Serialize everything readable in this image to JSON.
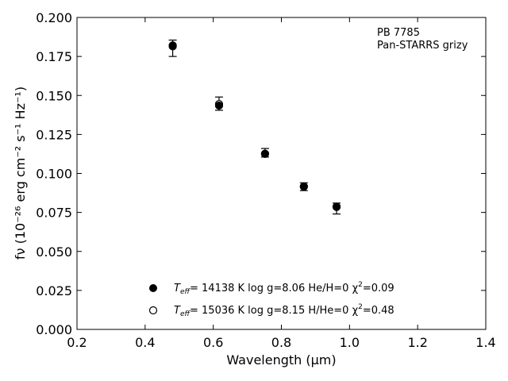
{
  "chart_data": {
    "type": "scatter",
    "title": "",
    "xlabel": "Wavelength (μm)",
    "ylabel": "fν (10⁻²⁶ erg cm⁻² s⁻¹ Hz⁻¹)",
    "xlim": [
      0.2,
      1.4
    ],
    "ylim": [
      0.0,
      0.2
    ],
    "xticks": [
      "0.2",
      "0.4",
      "0.6",
      "0.8",
      "1.0",
      "1.2",
      "1.4"
    ],
    "yticks": [
      "0.000",
      "0.025",
      "0.050",
      "0.075",
      "0.100",
      "0.125",
      "0.150",
      "0.175",
      "0.200"
    ],
    "annotation": [
      "PB 7785",
      "Pan-STARRS grizy"
    ],
    "observed": {
      "x": [
        0.481,
        0.617,
        0.752,
        0.866,
        0.962
      ],
      "y": [
        0.1805,
        0.1445,
        0.1125,
        0.0915,
        0.0775
      ],
      "yerr_low": [
        0.0055,
        0.004,
        0.002,
        0.0025,
        0.0035
      ],
      "yerr_high": [
        0.005,
        0.0045,
        0.0035,
        0.0025,
        0.0035
      ]
    },
    "series": [
      {
        "marker": "filled-circle",
        "label": "T_eff= 14138 K  log g=8.06  He/H=0  χ²=0.09",
        "x": [
          0.481,
          0.617,
          0.752,
          0.866,
          0.962
        ],
        "y": [
          0.1821,
          0.1435,
          0.1126,
          0.0917,
          0.0787
        ]
      },
      {
        "marker": "open-circle",
        "label": "T_eff= 15036 K  log g=8.15  H/He=0  χ²=0.48",
        "x": [
          0.481,
          0.617,
          0.752,
          0.866,
          0.962
        ],
        "y": [
          0.1815,
          0.1445,
          0.1126,
          0.0915,
          0.0785
        ]
      }
    ],
    "legend": {
      "placement": "lower-center",
      "entries": [
        {
          "teff_label": "T",
          "teff_sub": "eff",
          "text": "= 14138 K  log g=8.06  He/H=0  χ",
          "sup": "2",
          "tail": "=0.09"
        },
        {
          "teff_label": "T",
          "teff_sub": "eff",
          "text": "= 15036 K  log g=8.15  H/He=0  χ",
          "sup": "2",
          "tail": "=0.48"
        }
      ]
    },
    "grid": false,
    "colors": {
      "marker": "#000000",
      "background": "#ffffff"
    }
  }
}
